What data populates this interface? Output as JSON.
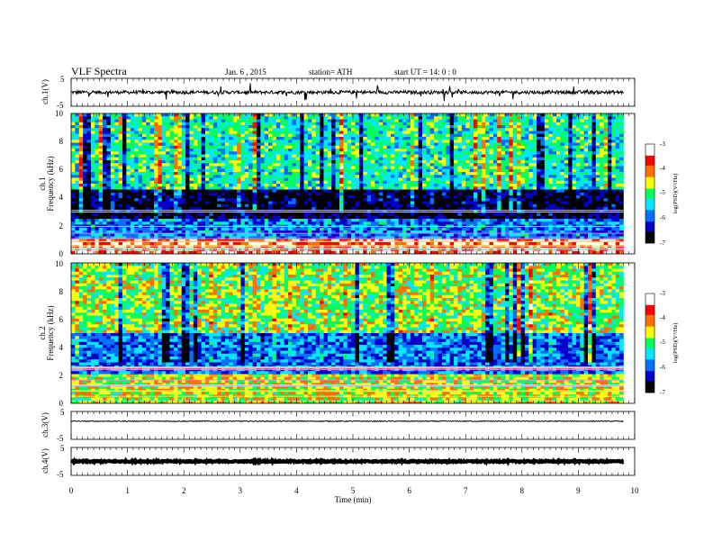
{
  "header": {
    "title": "VLF  Spectra",
    "date": "Jan.  6  , 2015",
    "station": "station= ATH",
    "start": "start  UT  =    14: 0  : 0"
  },
  "chart_data": {
    "type": "heatmap",
    "xlabel": "Time  (min)",
    "xlim": [
      0,
      10
    ],
    "x_ticks": [
      "0",
      "1",
      "2",
      "3",
      "4",
      "5",
      "6",
      "7",
      "8",
      "9",
      "10"
    ],
    "data_end_min": 9.8,
    "panels": [
      {
        "kind": "line",
        "ylabel": "ch.1(V)",
        "ylim": [
          -5,
          5
        ],
        "y_ticks": [
          "5",
          "-5"
        ],
        "baseline": 0,
        "noise_amplitude": 0.6
      },
      {
        "kind": "spectrogram",
        "ylabel_channel": "ch.1",
        "ylabel": "Frequency  (kHz)",
        "ylim": [
          0,
          10
        ],
        "y_ticks": [
          "0",
          "2",
          "4",
          "6",
          "8",
          "10"
        ],
        "colorbar": {
          "label": "log(PSD)(V²/Hz)",
          "range": [
            -7,
            -3
          ],
          "ticks": [
            "-3",
            "-4",
            "-5",
            "-6",
            "-7"
          ],
          "colors": [
            "#000000",
            "#0000c8",
            "#0070ff",
            "#00e8ff",
            "#00ff60",
            "#ffff00",
            "#ff7000",
            "#ff0000",
            "#ffffff"
          ]
        },
        "description_levels_by_freq_khz": [
          {
            "from": 0,
            "to": 1,
            "level": -3.5
          },
          {
            "from": 1,
            "to": 2.5,
            "level": -5.8
          },
          {
            "from": 2.5,
            "to": 4.5,
            "level": -6.7
          },
          {
            "from": 4.5,
            "to": 10,
            "level": -5.2
          }
        ]
      },
      {
        "kind": "spectrogram",
        "ylabel_channel": "ch.2",
        "ylabel": "Frequency  (kHz)",
        "ylim": [
          0,
          10
        ],
        "y_ticks": [
          "0",
          "2",
          "4",
          "6",
          "8",
          "10"
        ],
        "colorbar": {
          "label": "log(PSD)(V²/Hz)",
          "range": [
            -7,
            -3
          ],
          "ticks": [
            "-3",
            "-4",
            "-5",
            "-6",
            "-7"
          ],
          "colors": [
            "#000000",
            "#0000c8",
            "#0070ff",
            "#00e8ff",
            "#00ff60",
            "#ffff00",
            "#ff7000",
            "#ff0000",
            "#ffffff"
          ]
        },
        "description_levels_by_freq_khz": [
          {
            "from": 0,
            "to": 2,
            "level": -4.6
          },
          {
            "from": 2,
            "to": 5,
            "level": -5.9
          },
          {
            "from": 5,
            "to": 10,
            "level": -4.8
          }
        ]
      },
      {
        "kind": "line",
        "ylabel": "ch.3(V)",
        "ylim": [
          -5,
          5
        ],
        "y_ticks": [
          "5",
          "-5"
        ],
        "baseline": 1.5,
        "noise_amplitude": 0.15
      },
      {
        "kind": "line",
        "ylabel": "ch.4(V)",
        "ylim": [
          -5,
          5
        ],
        "y_ticks": [
          "5",
          "-5"
        ],
        "baseline": 0,
        "noise_amplitude": 0.25
      }
    ]
  }
}
